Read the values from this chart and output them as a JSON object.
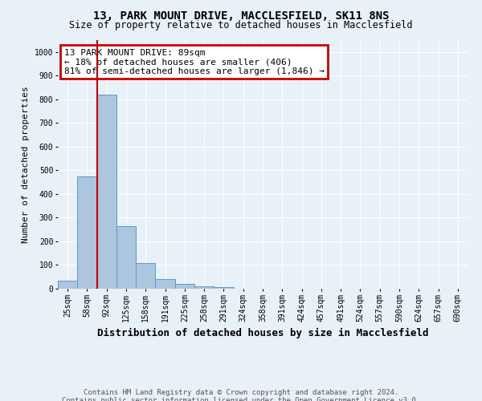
{
  "title": "13, PARK MOUNT DRIVE, MACCLESFIELD, SK11 8NS",
  "subtitle": "Size of property relative to detached houses in Macclesfield",
  "xlabel": "Distribution of detached houses by size in Macclesfield",
  "ylabel": "Number of detached properties",
  "footnote1": "Contains HM Land Registry data © Crown copyright and database right 2024.",
  "footnote2": "Contains public sector information licensed under the Open Government Licence v3.0.",
  "bar_labels": [
    "25sqm",
    "58sqm",
    "92sqm",
    "125sqm",
    "158sqm",
    "191sqm",
    "225sqm",
    "258sqm",
    "291sqm",
    "324sqm",
    "358sqm",
    "391sqm",
    "424sqm",
    "457sqm",
    "491sqm",
    "524sqm",
    "557sqm",
    "590sqm",
    "624sqm",
    "657sqm",
    "690sqm"
  ],
  "bar_values": [
    33,
    473,
    820,
    265,
    110,
    40,
    22,
    10,
    8,
    0,
    0,
    0,
    0,
    0,
    0,
    0,
    0,
    0,
    0,
    0,
    0
  ],
  "bar_color": "#adc6e0",
  "bar_edge_color": "#5a9bc4",
  "ylim": [
    0,
    1050
  ],
  "yticks": [
    0,
    100,
    200,
    300,
    400,
    500,
    600,
    700,
    800,
    900,
    1000
  ],
  "vline_color": "#cc0000",
  "annotation_text": "13 PARK MOUNT DRIVE: 89sqm\n← 18% of detached houses are smaller (406)\n81% of semi-detached houses are larger (1,846) →",
  "bg_color": "#e8f0f8",
  "grid_color": "#ffffff",
  "annotation_box_color": "#ffffff",
  "annotation_border_color": "#cc0000",
  "title_fontsize": 10,
  "subtitle_fontsize": 8.5,
  "xlabel_fontsize": 9,
  "ylabel_fontsize": 8,
  "tick_fontsize": 7,
  "annotation_fontsize": 8,
  "footnote_fontsize": 6.5
}
